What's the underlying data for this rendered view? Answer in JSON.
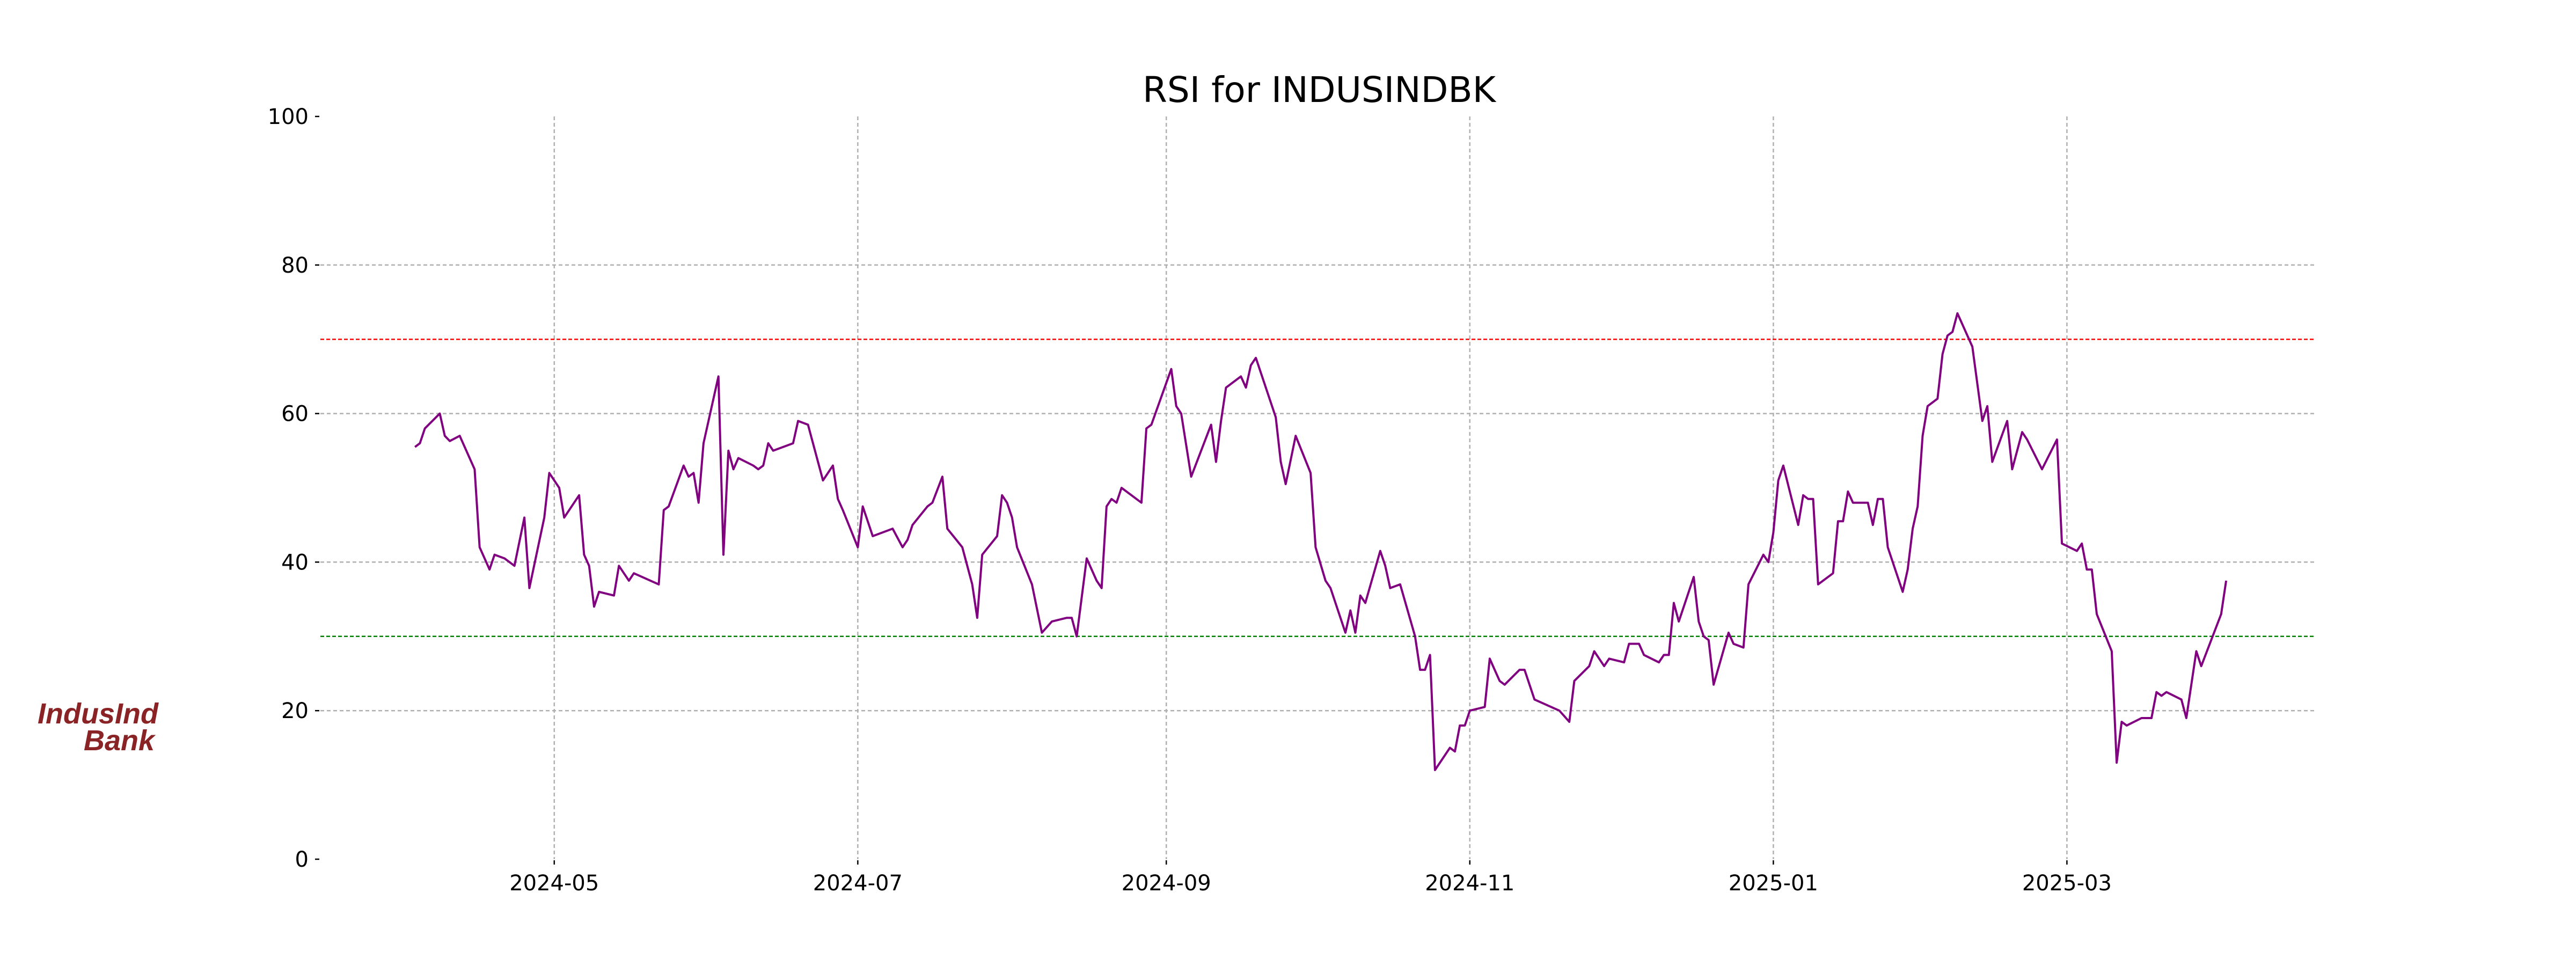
{
  "chart_data": {
    "type": "line",
    "title": "RSI for INDUSINDBK",
    "xlabel": "",
    "ylabel": "",
    "ylim": [
      0,
      100
    ],
    "xlim": [
      "2024-03-15",
      "2025-04-20"
    ],
    "grid": true,
    "y_ticks": [
      "0",
      "20",
      "40",
      "60",
      "80",
      "100"
    ],
    "x_ticks": [
      {
        "date": "2024-05-01",
        "label": "2024-05"
      },
      {
        "date": "2024-07-01",
        "label": "2024-07"
      },
      {
        "date": "2024-09-01",
        "label": "2024-09"
      },
      {
        "date": "2024-11-01",
        "label": "2024-11"
      },
      {
        "date": "2025-01-01",
        "label": "2025-01"
      },
      {
        "date": "2025-03-01",
        "label": "2025-03"
      }
    ],
    "reference_lines": [
      {
        "name": "overbought",
        "value": 70,
        "color": "#ff0000"
      },
      {
        "name": "oversold",
        "value": 30,
        "color": "#008000"
      }
    ],
    "series": [
      {
        "name": "RSI",
        "color": "#800080",
        "points": [
          [
            "2024-04-03",
            55.5
          ],
          [
            "2024-04-04",
            56
          ],
          [
            "2024-04-05",
            58
          ],
          [
            "2024-04-08",
            60
          ],
          [
            "2024-04-09",
            57
          ],
          [
            "2024-04-10",
            56.3
          ],
          [
            "2024-04-12",
            57
          ],
          [
            "2024-04-15",
            52.5
          ],
          [
            "2024-04-16",
            42
          ],
          [
            "2024-04-18",
            39
          ],
          [
            "2024-04-19",
            41
          ],
          [
            "2024-04-21",
            40.5
          ],
          [
            "2024-04-23",
            39.5
          ],
          [
            "2024-04-25",
            46
          ],
          [
            "2024-04-26",
            36.5
          ],
          [
            "2024-04-29",
            46
          ],
          [
            "2024-04-30",
            52
          ],
          [
            "2024-05-02",
            50
          ],
          [
            "2024-05-03",
            46
          ],
          [
            "2024-05-06",
            49
          ],
          [
            "2024-05-07",
            41
          ],
          [
            "2024-05-08",
            39.5
          ],
          [
            "2024-05-09",
            34
          ],
          [
            "2024-05-10",
            36
          ],
          [
            "2024-05-13",
            35.5
          ],
          [
            "2024-05-14",
            39.5
          ],
          [
            "2024-05-15",
            38.5
          ],
          [
            "2024-05-16",
            37.5
          ],
          [
            "2024-05-17",
            38.5
          ],
          [
            "2024-05-22",
            37
          ],
          [
            "2024-05-23",
            47
          ],
          [
            "2024-05-24",
            47.5
          ],
          [
            "2024-05-27",
            53
          ],
          [
            "2024-05-28",
            51.5
          ],
          [
            "2024-05-29",
            52
          ],
          [
            "2024-05-30",
            48
          ],
          [
            "2024-05-31",
            56
          ],
          [
            "2024-06-03",
            65
          ],
          [
            "2024-06-04",
            41
          ],
          [
            "2024-06-05",
            55
          ],
          [
            "2024-06-06",
            52.5
          ],
          [
            "2024-06-07",
            54
          ],
          [
            "2024-06-10",
            53
          ],
          [
            "2024-06-11",
            52.5
          ],
          [
            "2024-06-12",
            53
          ],
          [
            "2024-06-13",
            56
          ],
          [
            "2024-06-14",
            55
          ],
          [
            "2024-06-18",
            56
          ],
          [
            "2024-06-19",
            59
          ],
          [
            "2024-06-21",
            58.5
          ],
          [
            "2024-06-24",
            51
          ],
          [
            "2024-06-26",
            53
          ],
          [
            "2024-06-27",
            48.5
          ],
          [
            "2024-06-28",
            47
          ],
          [
            "2024-07-01",
            42
          ],
          [
            "2024-07-02",
            47.5
          ],
          [
            "2024-07-04",
            43.5
          ],
          [
            "2024-07-08",
            44.5
          ],
          [
            "2024-07-10",
            42
          ],
          [
            "2024-07-11",
            43
          ],
          [
            "2024-07-12",
            45
          ],
          [
            "2024-07-15",
            47.5
          ],
          [
            "2024-07-16",
            48
          ],
          [
            "2024-07-18",
            51.5
          ],
          [
            "2024-07-19",
            44.5
          ],
          [
            "2024-07-22",
            42
          ],
          [
            "2024-07-24",
            37
          ],
          [
            "2024-07-25",
            32.5
          ],
          [
            "2024-07-26",
            41
          ],
          [
            "2024-07-29",
            43.5
          ],
          [
            "2024-07-30",
            49
          ],
          [
            "2024-07-31",
            48
          ],
          [
            "2024-08-01",
            46
          ],
          [
            "2024-08-02",
            42
          ],
          [
            "2024-08-05",
            37
          ],
          [
            "2024-08-07",
            30.5
          ],
          [
            "2024-08-09",
            32
          ],
          [
            "2024-08-12",
            32.5
          ],
          [
            "2024-08-13",
            32.5
          ],
          [
            "2024-08-14",
            30
          ],
          [
            "2024-08-16",
            40.5
          ],
          [
            "2024-08-18",
            37.5
          ],
          [
            "2024-08-19",
            36.5
          ],
          [
            "2024-08-20",
            47.5
          ],
          [
            "2024-08-21",
            48.5
          ],
          [
            "2024-08-22",
            48
          ],
          [
            "2024-08-23",
            50
          ],
          [
            "2024-08-27",
            48
          ],
          [
            "2024-08-28",
            58
          ],
          [
            "2024-08-29",
            58.5
          ],
          [
            "2024-09-02",
            66
          ],
          [
            "2024-09-03",
            61
          ],
          [
            "2024-09-04",
            60
          ],
          [
            "2024-09-06",
            51.5
          ],
          [
            "2024-09-10",
            58.5
          ],
          [
            "2024-09-11",
            53.5
          ],
          [
            "2024-09-12",
            59
          ],
          [
            "2024-09-13",
            63.5
          ],
          [
            "2024-09-16",
            65
          ],
          [
            "2024-09-17",
            63.5
          ],
          [
            "2024-09-18",
            66.5
          ],
          [
            "2024-09-19",
            67.5
          ],
          [
            "2024-09-23",
            59.5
          ],
          [
            "2024-09-24",
            53.5
          ],
          [
            "2024-09-25",
            50.5
          ],
          [
            "2024-09-27",
            57
          ],
          [
            "2024-09-30",
            52
          ],
          [
            "2024-10-01",
            42
          ],
          [
            "2024-10-03",
            37.5
          ],
          [
            "2024-10-04",
            36.5
          ],
          [
            "2024-10-07",
            30.5
          ],
          [
            "2024-10-08",
            33.5
          ],
          [
            "2024-10-09",
            30.5
          ],
          [
            "2024-10-10",
            35.5
          ],
          [
            "2024-10-11",
            34.5
          ],
          [
            "2024-10-14",
            41.5
          ],
          [
            "2024-10-15",
            39.5
          ],
          [
            "2024-10-16",
            36.5
          ],
          [
            "2024-10-18",
            37
          ],
          [
            "2024-10-21",
            30
          ],
          [
            "2024-10-22",
            25.5
          ],
          [
            "2024-10-23",
            25.5
          ],
          [
            "2024-10-24",
            27.5
          ],
          [
            "2024-10-25",
            12
          ],
          [
            "2024-10-28",
            15
          ],
          [
            "2024-10-29",
            14.5
          ],
          [
            "2024-10-30",
            18
          ],
          [
            "2024-10-31",
            18
          ],
          [
            "2024-11-01",
            20
          ],
          [
            "2024-11-04",
            20.5
          ],
          [
            "2024-11-05",
            27
          ],
          [
            "2024-11-06",
            25.5
          ],
          [
            "2024-11-07",
            24
          ],
          [
            "2024-11-08",
            23.5
          ],
          [
            "2024-11-11",
            25.5
          ],
          [
            "2024-11-12",
            25.5
          ],
          [
            "2024-11-14",
            21.5
          ],
          [
            "2024-11-19",
            20
          ],
          [
            "2024-11-21",
            18.5
          ],
          [
            "2024-11-22",
            24
          ],
          [
            "2024-11-25",
            26
          ],
          [
            "2024-11-26",
            28
          ],
          [
            "2024-11-28",
            26
          ],
          [
            "2024-11-29",
            27
          ],
          [
            "2024-12-02",
            26.5
          ],
          [
            "2024-12-03",
            29
          ],
          [
            "2024-12-05",
            29
          ],
          [
            "2024-12-06",
            27.5
          ],
          [
            "2024-12-09",
            26.5
          ],
          [
            "2024-12-10",
            27.5
          ],
          [
            "2024-12-11",
            27.5
          ],
          [
            "2024-12-12",
            34.5
          ],
          [
            "2024-12-13",
            32
          ],
          [
            "2024-12-16",
            38
          ],
          [
            "2024-12-17",
            32
          ],
          [
            "2024-12-18",
            30
          ],
          [
            "2024-12-19",
            29.5
          ],
          [
            "2024-12-20",
            23.5
          ],
          [
            "2024-12-23",
            30.5
          ],
          [
            "2024-12-24",
            29
          ],
          [
            "2024-12-26",
            28.5
          ],
          [
            "2024-12-27",
            37
          ],
          [
            "2024-12-30",
            41
          ],
          [
            "2024-12-31",
            40
          ],
          [
            "2025-01-01",
            44
          ],
          [
            "2025-01-02",
            51
          ],
          [
            "2025-01-03",
            53
          ],
          [
            "2025-01-06",
            45
          ],
          [
            "2025-01-07",
            49
          ],
          [
            "2025-01-08",
            48.5
          ],
          [
            "2025-01-09",
            48.5
          ],
          [
            "2025-01-10",
            37
          ],
          [
            "2025-01-13",
            38.5
          ],
          [
            "2025-01-14",
            45.5
          ],
          [
            "2025-01-15",
            45.5
          ],
          [
            "2025-01-16",
            49.5
          ],
          [
            "2025-01-17",
            48
          ],
          [
            "2025-01-20",
            48
          ],
          [
            "2025-01-21",
            45
          ],
          [
            "2025-01-22",
            48.5
          ],
          [
            "2025-01-23",
            48.5
          ],
          [
            "2025-01-24",
            42
          ],
          [
            "2025-01-27",
            36
          ],
          [
            "2025-01-28",
            39
          ],
          [
            "2025-01-29",
            44.5
          ],
          [
            "2025-01-30",
            47.5
          ],
          [
            "2025-01-31",
            57
          ],
          [
            "2025-02-01",
            61
          ],
          [
            "2025-02-03",
            62
          ],
          [
            "2025-02-04",
            68
          ],
          [
            "2025-02-05",
            70.5
          ],
          [
            "2025-02-06",
            71
          ],
          [
            "2025-02-07",
            73.5
          ],
          [
            "2025-02-10",
            69
          ],
          [
            "2025-02-12",
            59
          ],
          [
            "2025-02-13",
            61
          ],
          [
            "2025-02-14",
            53.5
          ],
          [
            "2025-02-17",
            59
          ],
          [
            "2025-02-18",
            52.5
          ],
          [
            "2025-02-20",
            57.5
          ],
          [
            "2025-02-21",
            56.5
          ],
          [
            "2025-02-24",
            52.5
          ],
          [
            "2025-02-27",
            56.5
          ],
          [
            "2025-02-28",
            42.5
          ],
          [
            "2025-03-03",
            41.5
          ],
          [
            "2025-03-04",
            42.5
          ],
          [
            "2025-03-05",
            39
          ],
          [
            "2025-03-06",
            39
          ],
          [
            "2025-03-07",
            33
          ],
          [
            "2025-03-10",
            28
          ],
          [
            "2025-03-11",
            13
          ],
          [
            "2025-03-12",
            18.5
          ],
          [
            "2025-03-13",
            18
          ],
          [
            "2025-03-16",
            19
          ],
          [
            "2025-03-18",
            19
          ],
          [
            "2025-03-19",
            22.5
          ],
          [
            "2025-03-20",
            22
          ],
          [
            "2025-03-21",
            22.5
          ],
          [
            "2025-03-24",
            21.5
          ],
          [
            "2025-03-25",
            19
          ],
          [
            "2025-03-27",
            28
          ],
          [
            "2025-03-28",
            26
          ],
          [
            "2025-04-01",
            33
          ],
          [
            "2025-04-02",
            37.5
          ]
        ]
      }
    ]
  },
  "logo": {
    "line1": "IndusInd",
    "line2": "Bank"
  }
}
